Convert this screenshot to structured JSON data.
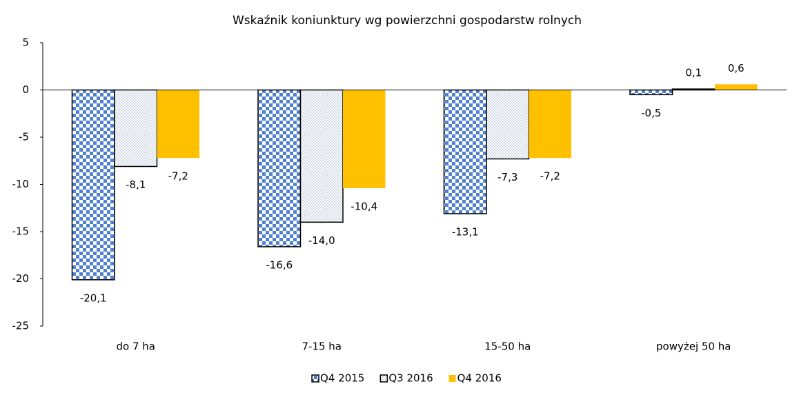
{
  "chart_data": {
    "type": "bar",
    "title": "Wskaźnik koniunktury wg powierzchni gospodarstw rolnych",
    "categories": [
      "do 7 ha",
      "7-15 ha",
      "15-50 ha",
      "powyżej 50 ha"
    ],
    "series": [
      {
        "name": "Q4 2015",
        "color": "#4f81d0",
        "pattern": "checker",
        "values": [
          -20.1,
          -16.6,
          -13.1,
          -0.5
        ],
        "value_labels": [
          "-20,1",
          "-16,6",
          "-13,1",
          "-0,5"
        ]
      },
      {
        "name": "Q3 2016",
        "color": "#8fa3c4",
        "pattern": "dots",
        "values": [
          -8.1,
          -14.0,
          -7.3,
          0.1
        ],
        "value_labels": [
          "-8,1",
          "-14,0",
          "-7,3",
          "0,1"
        ]
      },
      {
        "name": "Q4 2016",
        "color": "#ffc000",
        "pattern": "solid",
        "values": [
          -7.2,
          -10.4,
          -7.2,
          0.6
        ],
        "value_labels": [
          "-7,2",
          "-10,4",
          "-7,2",
          "0,6"
        ]
      }
    ],
    "ylim": [
      -25,
      5
    ],
    "yticks": [
      5,
      0,
      -5,
      -10,
      -15,
      -20,
      -25
    ],
    "grid": false,
    "legend": "bottom"
  }
}
